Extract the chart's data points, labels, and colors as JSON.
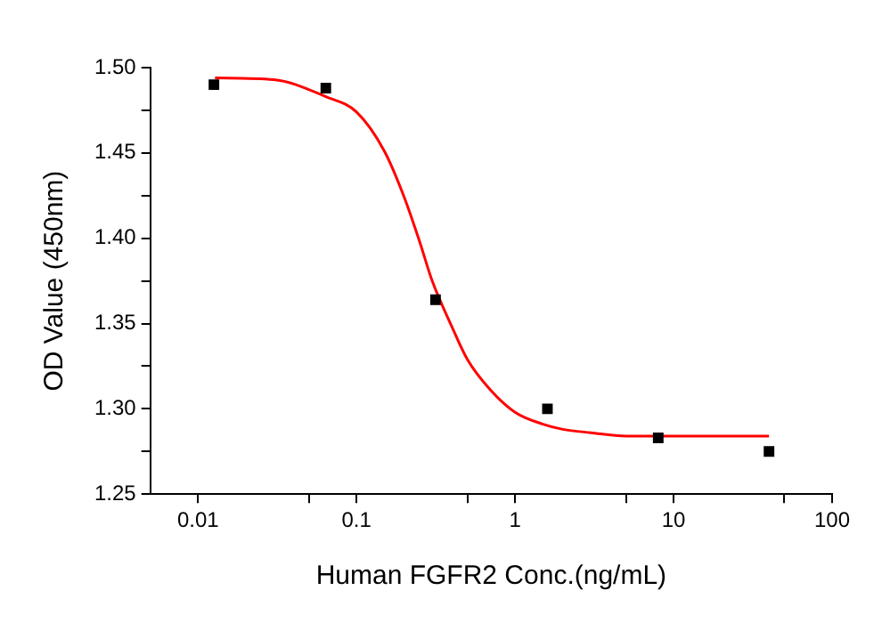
{
  "chart_data": {
    "type": "scatter",
    "xlabel": "Human FGFR2 Conc.(ng/mL)",
    "ylabel": "OD Value (450nm)",
    "log": "x",
    "grid": false,
    "legend": false,
    "xlim": [
      0.005,
      100
    ],
    "xticks": [
      0.01,
      {
        "value": 0.05,
        "label": null
      },
      0.1,
      {
        "value": 0.5,
        "label": null
      },
      1,
      {
        "value": 5,
        "label": null
      },
      10,
      {
        "value": 50,
        "label": null
      },
      100
    ],
    "ylim": [
      1.25,
      1.5
    ],
    "yticks": [
      1.25,
      {
        "value": 1.275,
        "label": null
      },
      {
        "value": 1.3,
        "label": "1.30"
      },
      {
        "value": 1.325,
        "label": null
      },
      1.35,
      {
        "value": 1.375,
        "label": null
      },
      {
        "value": 1.4,
        "label": "1.40"
      },
      {
        "value": 1.425,
        "label": null
      },
      1.45,
      {
        "value": 1.475,
        "label": null
      },
      {
        "value": 1.5,
        "label": "1.50"
      }
    ],
    "series": [
      {
        "color": "#000000",
        "marker": "square",
        "x": [
          0.0126,
          0.064,
          0.315,
          1.6,
          8,
          40
        ],
        "values": [
          1.49,
          1.488,
          1.364,
          1.3,
          1.283,
          1.275
        ]
      },
      {
        "type": "line",
        "color": "#ff0000",
        "marker": "none",
        "line_style": "solid",
        "x": [
          0.0128,
          0.03,
          0.064,
          0.1,
          0.15,
          0.2,
          0.25,
          0.3,
          0.4,
          0.5,
          0.7,
          1,
          1.5,
          2,
          3,
          5,
          10,
          40
        ],
        "values": [
          1.494,
          1.493,
          1.483,
          1.474,
          1.451,
          1.424,
          1.398,
          1.375,
          1.348,
          1.329,
          1.311,
          1.298,
          1.291,
          1.288,
          1.286,
          1.284,
          1.284,
          1.284
        ]
      }
    ]
  }
}
